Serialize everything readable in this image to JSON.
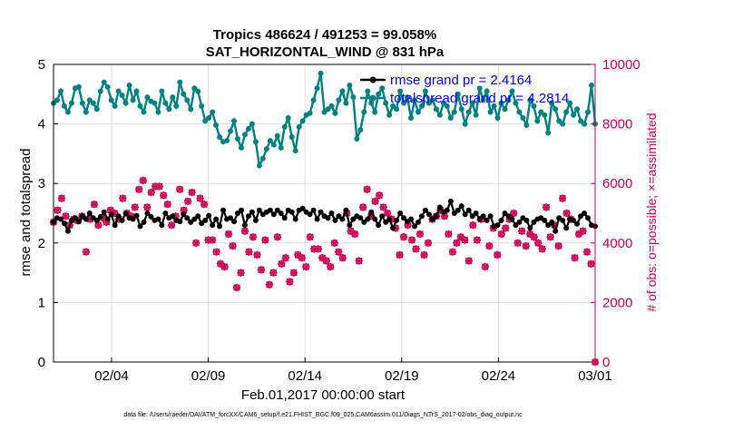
{
  "chart_data": {
    "type": "line",
    "title": "Tropics 486624 / 491253 = 99.058%",
    "subtitle": "SAT_HORIZONTAL_WIND @ 831 hPa",
    "xlabel": "Feb.01,2017 00:00:00 start",
    "ylabel_left": "rmse and totalspread",
    "ylabel_right": "# of obs: o=possible; ×=assimilated",
    "footer": "data file: /Users/raeder/DAI/ATM_forcXX/CAM6_setup/f.e21.FHIST_BGC.f09_025.CAM6assim.011/Diags_NTrS_2017-02/obs_diag_output.nc",
    "xlim": [
      1,
      29
    ],
    "ylim_left": [
      0,
      5
    ],
    "ylim_right": [
      0,
      10000
    ],
    "x_ticks": [
      {
        "value": 4,
        "label": "02/04"
      },
      {
        "value": 9,
        "label": "02/09"
      },
      {
        "value": 14,
        "label": "02/14"
      },
      {
        "value": 19,
        "label": "02/19"
      },
      {
        "value": 24,
        "label": "02/24"
      },
      {
        "value": 29,
        "label": "03/01"
      }
    ],
    "y_left_ticks": [
      "0",
      "1",
      "2",
      "3",
      "4",
      "5"
    ],
    "y_right_ticks": [
      "0",
      "2000",
      "4000",
      "6000",
      "8000",
      "10000"
    ],
    "grid": true,
    "legend_position": "top-right",
    "colors": {
      "rmse": "#000000",
      "totalspread": "#008080",
      "obs": "#cc0052",
      "legend_text": "#0000ff",
      "right_axis": "#cc0052"
    },
    "series": [
      {
        "name": "rmse grand pr = 2.4164",
        "color": "#000000",
        "axis": "left",
        "values": [
          2.35,
          2.42,
          2.4,
          2.33,
          2.2,
          2.38,
          2.42,
          2.36,
          2.45,
          2.4,
          2.5,
          2.42,
          2.38,
          2.44,
          2.52,
          2.4,
          2.48,
          2.3,
          2.45,
          2.38,
          2.5,
          2.42,
          2.4,
          2.46,
          2.28,
          2.35,
          2.5,
          2.44,
          2.38,
          2.4,
          2.3,
          2.5,
          2.42,
          2.45,
          2.38,
          2.36,
          2.48,
          2.42,
          2.35,
          2.4,
          2.45,
          2.33,
          2.38,
          2.46,
          2.3,
          2.4,
          2.28,
          2.55,
          2.4,
          2.42,
          2.36,
          2.5,
          2.55,
          2.3,
          2.45,
          2.52,
          2.38,
          2.55,
          2.48,
          2.52,
          2.55,
          2.48,
          2.55,
          2.5,
          2.42,
          2.55,
          2.52,
          2.4,
          2.55,
          2.58,
          2.52,
          2.48,
          2.55,
          2.4,
          2.52,
          2.45,
          2.42,
          2.5,
          2.38,
          2.45,
          2.4,
          2.55,
          2.3,
          2.4,
          2.45,
          2.42,
          2.35,
          2.4,
          2.52,
          2.4,
          2.3,
          2.45,
          2.35,
          2.4,
          2.25,
          2.38,
          2.5,
          2.42,
          2.36,
          2.4,
          2.28,
          2.35,
          2.45,
          2.55,
          2.48,
          2.4,
          2.45,
          2.6,
          2.52,
          2.55,
          2.7,
          2.5,
          2.55,
          2.62,
          2.48,
          2.55,
          2.45,
          2.5,
          2.4,
          2.45,
          2.38,
          2.45,
          2.28,
          2.3,
          2.38,
          2.5,
          2.45,
          2.4,
          2.3,
          2.35,
          2.42,
          2.38,
          2.25,
          2.35,
          2.4,
          2.42,
          2.38,
          2.3,
          2.35,
          2.2,
          2.42,
          2.38,
          2.25,
          2.4,
          2.38,
          2.32,
          2.45,
          2.5,
          2.42,
          2.3,
          2.28
        ]
      },
      {
        "name": "totalspread grand pr = 4.2814",
        "color": "#008080",
        "axis": "left",
        "values": [
          4.35,
          4.4,
          4.55,
          4.3,
          4.2,
          4.35,
          4.6,
          4.62,
          4.35,
          4.2,
          4.4,
          4.35,
          4.25,
          4.55,
          4.7,
          4.62,
          4.4,
          4.3,
          4.55,
          4.48,
          4.35,
          4.65,
          4.4,
          4.55,
          4.3,
          4.2,
          4.45,
          4.38,
          4.35,
          4.2,
          4.55,
          4.35,
          4.25,
          4.45,
          4.3,
          4.7,
          4.5,
          4.4,
          4.25,
          4.6,
          4.55,
          4.3,
          4.05,
          4.1,
          4.2,
          3.98,
          3.78,
          3.7,
          3.72,
          3.88,
          4.05,
          3.75,
          3.6,
          3.82,
          3.92,
          4.0,
          3.7,
          3.3,
          3.42,
          3.58,
          3.72,
          3.65,
          3.8,
          3.6,
          3.95,
          4.1,
          3.78,
          3.55,
          3.95,
          4.05,
          4.15,
          4.18,
          4.4,
          4.6,
          4.85,
          4.2,
          4.25,
          4.3,
          4.18,
          4.4,
          4.55,
          4.35,
          4.65,
          4.45,
          3.75,
          3.9,
          4.2,
          4.55,
          4.35,
          4.2,
          4.5,
          4.6,
          4.35,
          4.15,
          4.3,
          4.25,
          4.55,
          4.35,
          4.45,
          4.1,
          4.4,
          4.2,
          4.3,
          4.55,
          4.35,
          4.4,
          4.25,
          4.15,
          4.35,
          4.3,
          4.1,
          4.2,
          4.5,
          4.25,
          4.0,
          4.2,
          4.35,
          4.15,
          4.6,
          4.4,
          4.55,
          4.2,
          4.3,
          4.1,
          4.35,
          4.25,
          4.4,
          4.55,
          4.35,
          4.2,
          4.1,
          3.98,
          4.4,
          4.3,
          4.05,
          4.2,
          4.15,
          3.85,
          4.35,
          4.25,
          4.05,
          4.0,
          4.2,
          4.35,
          4.15,
          4.25,
          4.05,
          4.0,
          4.2,
          4.65,
          4.0
        ]
      },
      {
        "name": "obs possible",
        "color": "#cc0052",
        "axis": "right",
        "values": [
          4700,
          5100,
          5500,
          4900,
          4600,
          4800,
          4750,
          4900,
          3700,
          4800,
          5300,
          4600,
          4850,
          4700,
          5100,
          5000,
          4800,
          5500,
          5000,
          4900,
          5200,
          5800,
          6100,
          5200,
          5700,
          5900,
          5900,
          5600,
          5300,
          4600,
          4900,
          5800,
          5100,
          5400,
          5700,
          4000,
          5500,
          5300,
          4100,
          4100,
          3700,
          3300,
          3200,
          4300,
          3900,
          2500,
          3000,
          4400,
          3700,
          4200,
          3600,
          3100,
          4100,
          2600,
          3000,
          4200,
          3300,
          3500,
          2700,
          3000,
          3600,
          3500,
          3200,
          4200,
          3800,
          3800,
          3500,
          3400,
          3200,
          4000,
          3700,
          3500,
          5000,
          4400,
          4300,
          3400,
          5200,
          5800,
          4900,
          5400,
          5600,
          5200,
          5000,
          4800,
          4500,
          3600,
          4200,
          4600,
          4100,
          3800,
          4300,
          3600,
          4000,
          4800,
          4900,
          5100,
          4900,
          4300,
          3700,
          4000,
          4200,
          4100,
          3400,
          4600,
          4100,
          4800,
          3200,
          3900,
          4500,
          3600,
          4300,
          4500,
          4800,
          5000,
          4000,
          4400,
          3900,
          4300,
          4200,
          4000,
          3800,
          5200,
          4200,
          4600,
          3900,
          5500,
          5000,
          4800,
          3500,
          4300,
          4400,
          3700,
          3300,
          0
        ]
      }
    ]
  }
}
